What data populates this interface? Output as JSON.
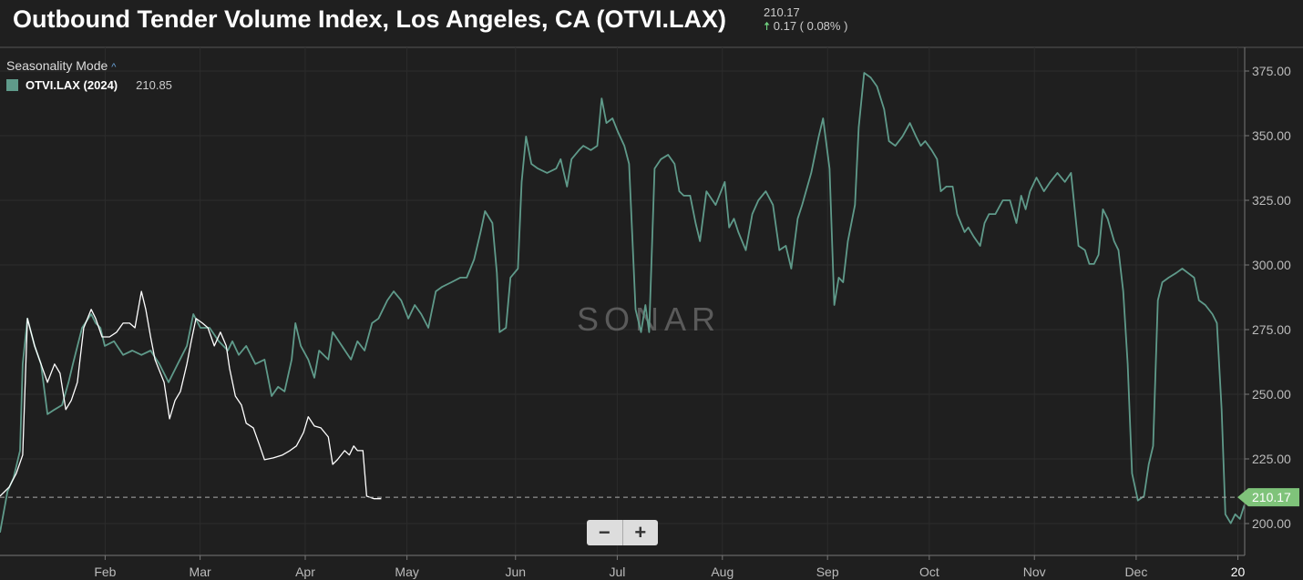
{
  "header": {
    "title": "Outbound Tender Volume Index, Los Angeles, CA (OTVI.LAX)",
    "last_value": "210.17",
    "change": "0.17 ( 0.08% )"
  },
  "legend": {
    "mode_label": "Seasonality Mode",
    "series_label": "OTVI.LAX (2024)",
    "series_value": "210.85"
  },
  "watermark": "SONAR",
  "zoom": {
    "minus": "−",
    "plus": "+"
  },
  "colors": {
    "series_2024": "#5f9a8a",
    "series_2025": "#ffffff",
    "price_tag": "#7fc37a"
  },
  "chart_data": {
    "type": "line",
    "title": "Outbound Tender Volume Index, Los Angeles, CA (OTVI.LAX)",
    "x_unit": "day of year",
    "xlim": [
      0,
      367
    ],
    "ylim": [
      190,
      380
    ],
    "yticks": [
      200,
      225,
      250,
      275,
      300,
      325,
      350,
      375
    ],
    "ytick_labels": [
      "200.00",
      "225.00",
      "250.00",
      "275.00",
      "300.00",
      "325.00",
      "350.00",
      "375.00"
    ],
    "xticks": [
      {
        "day": 31,
        "label": "Feb"
      },
      {
        "day": 59,
        "label": "Mar"
      },
      {
        "day": 90,
        "label": "Apr"
      },
      {
        "day": 120,
        "label": "May"
      },
      {
        "day": 152,
        "label": "Jun"
      },
      {
        "day": 182,
        "label": "Jul"
      },
      {
        "day": 213,
        "label": "Aug"
      },
      {
        "day": 244,
        "label": "Sep"
      },
      {
        "day": 274,
        "label": "Oct"
      },
      {
        "day": 305,
        "label": "Nov"
      },
      {
        "day": 335,
        "label": "Dec"
      },
      {
        "day": 365,
        "label": "20"
      }
    ],
    "current_value": 210.17,
    "current_label": "210.17",
    "series": [
      {
        "name": "OTVI.LAX (2024)",
        "points": [
          [
            0,
            196.5
          ],
          [
            2.2,
            212.4
          ],
          [
            4,
            217.7
          ],
          [
            5.9,
            228.2
          ],
          [
            6.7,
            261.7
          ],
          [
            8.1,
            279.3
          ],
          [
            10.2,
            268.7
          ],
          [
            12.1,
            261.7
          ],
          [
            14,
            242.3
          ],
          [
            16.1,
            244.1
          ],
          [
            18.3,
            245.8
          ],
          [
            20.2,
            254.6
          ],
          [
            21.5,
            261.7
          ],
          [
            24.2,
            275.7
          ],
          [
            26.9,
            281
          ],
          [
            28.2,
            277.5
          ],
          [
            29.6,
            275.7
          ],
          [
            30.9,
            268.7
          ],
          [
            33.6,
            270.5
          ],
          [
            36.3,
            265.2
          ],
          [
            39,
            266.9
          ],
          [
            41.7,
            265.2
          ],
          [
            44.4,
            266.9
          ],
          [
            47,
            261.7
          ],
          [
            49.7,
            254.6
          ],
          [
            52.4,
            261.7
          ],
          [
            55.1,
            268.7
          ],
          [
            57,
            281
          ],
          [
            59.1,
            275.7
          ],
          [
            61.8,
            275.7
          ],
          [
            64.5,
            270.5
          ],
          [
            67.2,
            266.9
          ],
          [
            68.5,
            270.5
          ],
          [
            70.4,
            265.2
          ],
          [
            72.6,
            268.7
          ],
          [
            75.3,
            261.7
          ],
          [
            78,
            263.4
          ],
          [
            80.1,
            249.3
          ],
          [
            82,
            252.9
          ],
          [
            83.9,
            251.1
          ],
          [
            86,
            263.4
          ],
          [
            87.1,
            277.5
          ],
          [
            88.7,
            268.7
          ],
          [
            90.9,
            263.4
          ],
          [
            92.7,
            256.4
          ],
          [
            94.1,
            266.9
          ],
          [
            96.8,
            263.4
          ],
          [
            98.1,
            274
          ],
          [
            100.8,
            268.7
          ],
          [
            103.5,
            263.4
          ],
          [
            105.4,
            270.5
          ],
          [
            107.5,
            266.9
          ],
          [
            109.7,
            277.5
          ],
          [
            111.6,
            279.3
          ],
          [
            114.2,
            286.3
          ],
          [
            116.1,
            289.8
          ],
          [
            118.3,
            286.3
          ],
          [
            120.4,
            279.3
          ],
          [
            122.3,
            284.5
          ],
          [
            124.2,
            281
          ],
          [
            126.3,
            275.7
          ],
          [
            128.5,
            289.8
          ],
          [
            130.4,
            291.6
          ],
          [
            133.1,
            293.3
          ],
          [
            135.7,
            295.1
          ],
          [
            137.6,
            295.1
          ],
          [
            139.8,
            302.1
          ],
          [
            141.7,
            312.7
          ],
          [
            143,
            320.8
          ],
          [
            145.2,
            316.2
          ],
          [
            146.5,
            296.9
          ],
          [
            147.3,
            274
          ],
          [
            149.2,
            275.7
          ],
          [
            150.5,
            295.1
          ],
          [
            152.7,
            298.6
          ],
          [
            153.8,
            332.1
          ],
          [
            155.1,
            349.7
          ],
          [
            156.7,
            339.1
          ],
          [
            158.6,
            337.3
          ],
          [
            161.3,
            335.6
          ],
          [
            164,
            337.3
          ],
          [
            165.3,
            340.9
          ],
          [
            167.2,
            330.3
          ],
          [
            168.5,
            340.9
          ],
          [
            170.7,
            344.4
          ],
          [
            172,
            346.1
          ],
          [
            174.2,
            344.4
          ],
          [
            176.1,
            346.1
          ],
          [
            177.4,
            364.4
          ],
          [
            178.8,
            354.9
          ],
          [
            180.6,
            356.7
          ],
          [
            182.2,
            351.4
          ],
          [
            184.1,
            346.1
          ],
          [
            185.5,
            339.1
          ],
          [
            187.4,
            282.8
          ],
          [
            189,
            274
          ],
          [
            190.3,
            284.5
          ],
          [
            191.4,
            274
          ],
          [
            193,
            337.3
          ],
          [
            194.9,
            340.9
          ],
          [
            197,
            342.6
          ],
          [
            198.9,
            339.1
          ],
          [
            200.3,
            328.5
          ],
          [
            201.6,
            326.8
          ],
          [
            203.5,
            326.8
          ],
          [
            205.1,
            316.2
          ],
          [
            206.4,
            309.2
          ],
          [
            208.3,
            328.5
          ],
          [
            211,
            323.2
          ],
          [
            213.7,
            332.1
          ],
          [
            215,
            314.5
          ],
          [
            216.4,
            317.9
          ],
          [
            217.7,
            312.7
          ],
          [
            219.9,
            305.7
          ],
          [
            221.8,
            319.7
          ],
          [
            223.6,
            325
          ],
          [
            225.8,
            328.5
          ],
          [
            227.9,
            323.2
          ],
          [
            229.8,
            305.7
          ],
          [
            231.7,
            307.4
          ],
          [
            233.3,
            298.6
          ],
          [
            235.2,
            317.9
          ],
          [
            236.5,
            323.2
          ],
          [
            239.2,
            335.6
          ],
          [
            241.4,
            349.7
          ],
          [
            242.7,
            356.7
          ],
          [
            244.6,
            337.3
          ],
          [
            246,
            284.5
          ],
          [
            247.3,
            295.1
          ],
          [
            248.6,
            293.3
          ],
          [
            250,
            309.2
          ],
          [
            252.1,
            323.2
          ],
          [
            253.2,
            353.2
          ],
          [
            254.8,
            374.3
          ],
          [
            256.7,
            372.5
          ],
          [
            258.6,
            369
          ],
          [
            260.7,
            360.2
          ],
          [
            262.1,
            347.9
          ],
          [
            264,
            346.1
          ],
          [
            266.1,
            349.7
          ],
          [
            268.3,
            354.9
          ],
          [
            270.1,
            349.7
          ],
          [
            271.5,
            346.1
          ],
          [
            272.8,
            347.9
          ],
          [
            274.7,
            344.4
          ],
          [
            276.3,
            340.9
          ],
          [
            277.4,
            328.5
          ],
          [
            279,
            330.3
          ],
          [
            280.9,
            330.3
          ],
          [
            282.2,
            319.7
          ],
          [
            284.4,
            312.7
          ],
          [
            285.5,
            314.5
          ],
          [
            287.1,
            311
          ],
          [
            289,
            307.4
          ],
          [
            290.3,
            316.2
          ],
          [
            291.6,
            319.7
          ],
          [
            293.5,
            319.7
          ],
          [
            295.7,
            325
          ],
          [
            297.8,
            325
          ],
          [
            299.7,
            316.2
          ],
          [
            301.1,
            326.8
          ],
          [
            302.4,
            321.5
          ],
          [
            303.7,
            328.5
          ],
          [
            305.6,
            333.8
          ],
          [
            307.8,
            328.5
          ],
          [
            309.7,
            332.1
          ],
          [
            311.8,
            335.6
          ],
          [
            314,
            332.1
          ],
          [
            315.8,
            335.6
          ],
          [
            318,
            307.4
          ],
          [
            319.9,
            305.7
          ],
          [
            321.2,
            300.4
          ],
          [
            322.6,
            300.4
          ],
          [
            323.9,
            303.9
          ],
          [
            325.2,
            321.5
          ],
          [
            326.6,
            317.9
          ],
          [
            328.5,
            309.2
          ],
          [
            329.8,
            305.7
          ],
          [
            331.2,
            289.8
          ],
          [
            332.5,
            261.7
          ],
          [
            333.8,
            219.4
          ],
          [
            335.5,
            208.9
          ],
          [
            337.3,
            210.6
          ],
          [
            338.7,
            222.9
          ],
          [
            340,
            230
          ],
          [
            341.4,
            286.3
          ],
          [
            342.7,
            293.3
          ],
          [
            344.6,
            295.1
          ],
          [
            346.8,
            296.9
          ],
          [
            348.6,
            298.6
          ],
          [
            350.3,
            296.9
          ],
          [
            352.1,
            295.1
          ],
          [
            353.5,
            286.3
          ],
          [
            355.4,
            284.5
          ],
          [
            357.5,
            281
          ],
          [
            358.8,
            277.5
          ],
          [
            360.2,
            244.1
          ],
          [
            361.3,
            203.6
          ],
          [
            362.9,
            200.1
          ],
          [
            364.2,
            203.6
          ],
          [
            365.6,
            201.8
          ],
          [
            366.9,
            207.1
          ]
        ]
      },
      {
        "name": "OTVI.LAX (2025)",
        "points": [
          [
            0,
            210.6
          ],
          [
            2.7,
            214.1
          ],
          [
            4.8,
            219.4
          ],
          [
            6.7,
            226.5
          ],
          [
            8.1,
            279.3
          ],
          [
            10.2,
            268.7
          ],
          [
            12.1,
            261.7
          ],
          [
            14,
            254.6
          ],
          [
            16.1,
            261.7
          ],
          [
            17.7,
            258.1
          ],
          [
            19.4,
            244.1
          ],
          [
            21,
            247.6
          ],
          [
            22.8,
            254.6
          ],
          [
            24.7,
            275.7
          ],
          [
            26.9,
            282.8
          ],
          [
            28.2,
            279.3
          ],
          [
            30.1,
            272.2
          ],
          [
            32.3,
            272.2
          ],
          [
            34.4,
            274
          ],
          [
            36.3,
            277.5
          ],
          [
            38.2,
            277.5
          ],
          [
            39.8,
            275.7
          ],
          [
            41.7,
            289.8
          ],
          [
            43,
            282.8
          ],
          [
            44.4,
            272.2
          ],
          [
            45.7,
            263.4
          ],
          [
            48.4,
            254.6
          ],
          [
            50,
            240.5
          ],
          [
            51.6,
            247.6
          ],
          [
            53.2,
            251.1
          ],
          [
            55.1,
            261.7
          ],
          [
            56.4,
            270.5
          ],
          [
            57.8,
            279.3
          ],
          [
            59.7,
            277.5
          ],
          [
            61.3,
            275.7
          ],
          [
            63.2,
            268.7
          ],
          [
            65,
            274
          ],
          [
            66.7,
            268.7
          ],
          [
            67.7,
            259.9
          ],
          [
            69.4,
            249.3
          ],
          [
            71.2,
            245.8
          ],
          [
            72.6,
            238.8
          ],
          [
            74.7,
            237
          ],
          [
            76.6,
            230
          ],
          [
            78,
            224.7
          ],
          [
            80.6,
            225.4
          ],
          [
            83.3,
            226.5
          ],
          [
            85.5,
            228.2
          ],
          [
            87.4,
            230
          ],
          [
            89.5,
            235.2
          ],
          [
            90.9,
            241.3
          ],
          [
            92.7,
            237.7
          ],
          [
            94.6,
            237
          ],
          [
            96.8,
            233.5
          ],
          [
            98.1,
            222.9
          ],
          [
            99.5,
            224.7
          ],
          [
            101.6,
            228.2
          ],
          [
            103,
            226.5
          ],
          [
            104.3,
            230
          ],
          [
            105.4,
            228.2
          ],
          [
            107,
            228.2
          ],
          [
            108.1,
            210.6
          ],
          [
            110.2,
            209.6
          ],
          [
            112.4,
            209.6
          ]
        ]
      }
    ]
  }
}
